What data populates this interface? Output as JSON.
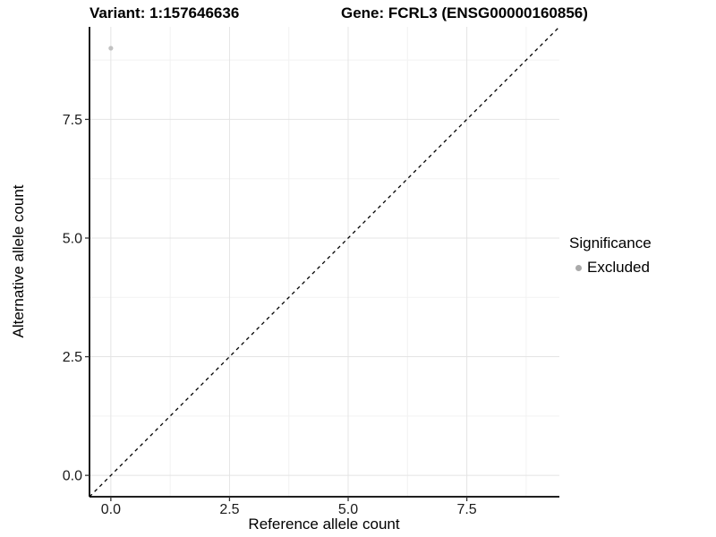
{
  "chart_data": {
    "type": "scatter",
    "title_left": "Variant: 1:157646636",
    "title_right": "Gene: FCRL3 (ENSG00000160856)",
    "xlabel": "Reference allele count",
    "ylabel": "Alternative allele count",
    "xlim": [
      -0.45,
      9.45
    ],
    "ylim": [
      -0.45,
      9.45
    ],
    "major_ticks": [
      0,
      2.5,
      5,
      7.5
    ],
    "minor_ticks": [
      1.25,
      3.75,
      6.25,
      8.75
    ],
    "tick_decimals": 1,
    "grid": true,
    "legend_position": "right",
    "reference_line": {
      "kind": "identity",
      "style": "dashed",
      "color": "#000000"
    },
    "points": [
      {
        "x": 0,
        "y": 9,
        "series": "Excluded",
        "color": "#c2c2c2"
      }
    ],
    "legend": {
      "title": "Significance",
      "items": [
        {
          "label": "Excluded",
          "color": "#aaaaaa"
        }
      ]
    },
    "colors": {
      "major_grid": "#e4e4e4",
      "minor_grid": "#f2f2f2",
      "axis": "#000000",
      "tick_mark": "#333333",
      "tick_text": "#1a1a1a"
    }
  }
}
